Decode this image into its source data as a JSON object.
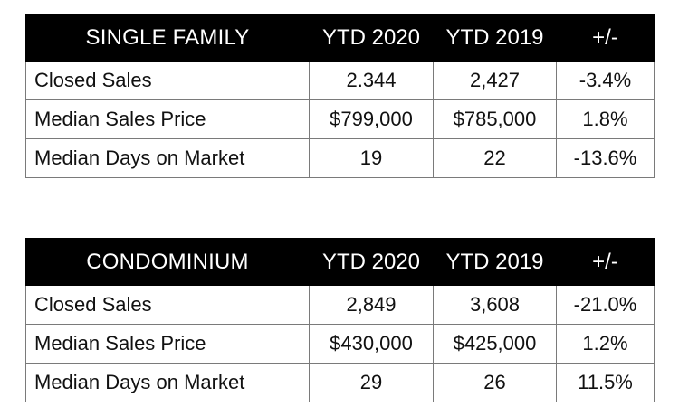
{
  "tables": [
    {
      "title": "SINGLE FAMILY",
      "headers": [
        "YTD 2020",
        "YTD 2019",
        "+/-"
      ],
      "rows": [
        {
          "label": "Closed Sales",
          "ytd2020": "2.344",
          "ytd2019": "2,427",
          "change": "-3.4%"
        },
        {
          "label": "Median Sales Price",
          "ytd2020": "$799,000",
          "ytd2019": "$785,000",
          "change": "1.8%"
        },
        {
          "label": "Median Days on Market",
          "ytd2020": "19",
          "ytd2019": "22",
          "change": "-13.6%"
        }
      ]
    },
    {
      "title": "CONDOMINIUM",
      "headers": [
        "YTD 2020",
        "YTD 2019",
        "+/-"
      ],
      "rows": [
        {
          "label": "Closed Sales",
          "ytd2020": "2,849",
          "ytd2019": "3,608",
          "change": "-21.0%"
        },
        {
          "label": "Median Sales Price",
          "ytd2020": "$430,000",
          "ytd2019": "$425,000",
          "change": "1.2%"
        },
        {
          "label": "Median Days on Market",
          "ytd2020": "29",
          "ytd2019": "26",
          "change": "11.5%"
        }
      ]
    }
  ]
}
